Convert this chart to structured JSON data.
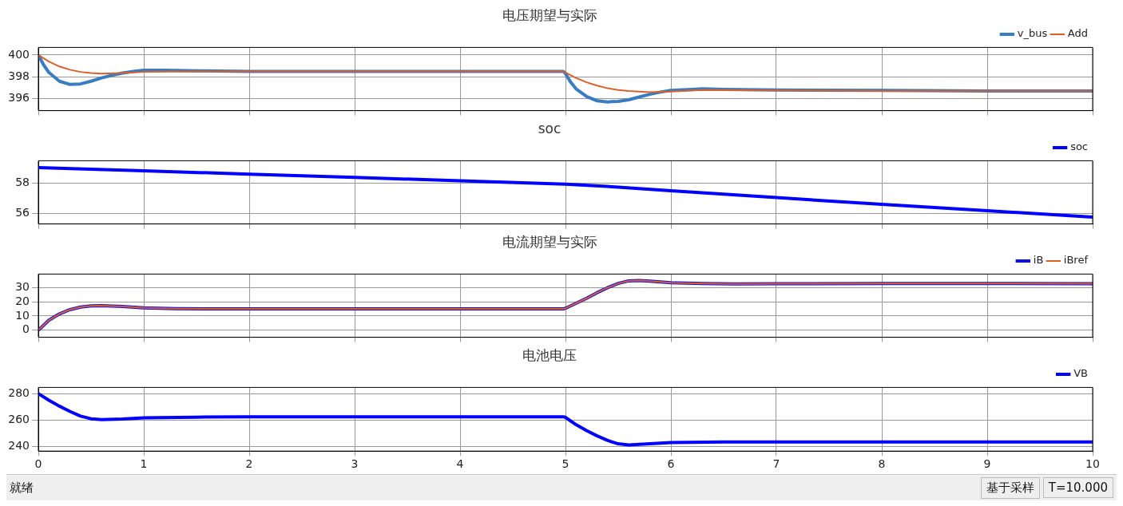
{
  "chart_data": [
    {
      "type": "line",
      "title": "电压期望与实际",
      "xlim": [
        0,
        10
      ],
      "xticks": [
        0,
        1,
        2,
        3,
        4,
        5,
        6,
        7,
        8,
        9,
        10
      ],
      "ylim": [
        394.9,
        400.7
      ],
      "yticks": [
        396,
        398,
        400
      ],
      "grid": true,
      "legend": "top right",
      "tick_labels": "y",
      "series": [
        {
          "name": "v_bus",
          "color": "#3a7cc2",
          "x": [
            0,
            0.05,
            0.1,
            0.2,
            0.3,
            0.4,
            0.5,
            0.6,
            0.7,
            0.8,
            0.9,
            1,
            1.2,
            1.5,
            2,
            3,
            4,
            4.98,
            5,
            5.05,
            5.1,
            5.2,
            5.3,
            5.4,
            5.5,
            5.6,
            5.7,
            5.8,
            5.9,
            6,
            6.2,
            6.3,
            6.5,
            7,
            8,
            9,
            10
          ],
          "values": [
            400,
            399.1,
            398.4,
            397.6,
            397.3,
            397.35,
            397.6,
            397.9,
            398.15,
            398.35,
            398.5,
            398.6,
            398.6,
            398.55,
            398.5,
            398.5,
            398.5,
            398.5,
            398.3,
            397.5,
            396.9,
            396.2,
            395.8,
            395.7,
            395.75,
            395.9,
            396.15,
            396.4,
            396.6,
            396.75,
            396.85,
            396.9,
            396.85,
            396.8,
            396.75,
            396.7,
            396.7
          ]
        },
        {
          "name": "Add",
          "color": "#d95f2b",
          "x": [
            0,
            0.1,
            0.2,
            0.3,
            0.4,
            0.5,
            0.6,
            0.8,
            1,
            1.5,
            2,
            3,
            4,
            4.98,
            5,
            5.1,
            5.2,
            5.3,
            5.4,
            5.5,
            5.6,
            5.8,
            6,
            6.3,
            7,
            8,
            9,
            10
          ],
          "values": [
            400,
            399.4,
            398.95,
            398.65,
            398.45,
            398.35,
            398.3,
            398.35,
            398.45,
            398.5,
            398.5,
            398.5,
            398.5,
            398.5,
            398.4,
            397.9,
            397.5,
            397.2,
            396.95,
            396.8,
            396.7,
            396.6,
            396.65,
            396.8,
            396.75,
            396.7,
            396.7,
            396.7
          ]
        }
      ]
    },
    {
      "type": "line",
      "title": "soc",
      "xlim": [
        0,
        10
      ],
      "xticks": [
        0,
        1,
        2,
        3,
        4,
        5,
        6,
        7,
        8,
        9,
        10
      ],
      "ylim": [
        55.3,
        59.5
      ],
      "yticks": [
        56,
        58
      ],
      "grid": true,
      "legend": "top right",
      "tick_labels": "y",
      "series": [
        {
          "name": "soc",
          "color": "#0000ff",
          "x": [
            0,
            1,
            2,
            3,
            4,
            5,
            5.5,
            6,
            7,
            8,
            9,
            10
          ],
          "values": [
            59.05,
            58.83,
            58.61,
            58.39,
            58.17,
            57.95,
            57.75,
            57.5,
            57.05,
            56.6,
            56.18,
            55.75
          ]
        }
      ]
    },
    {
      "type": "line",
      "title": "电流期望与实际",
      "xlim": [
        0,
        10
      ],
      "xticks": [
        0,
        1,
        2,
        3,
        4,
        5,
        6,
        7,
        8,
        9,
        10
      ],
      "ylim": [
        -5,
        39.6
      ],
      "yticks": [
        0,
        10,
        20,
        30
      ],
      "grid": true,
      "legend": "top right",
      "tick_labels": "y",
      "series": [
        {
          "name": "iB",
          "color": "#1010ee",
          "x": [
            0,
            0.1,
            0.2,
            0.3,
            0.4,
            0.5,
            0.6,
            0.8,
            1,
            1.3,
            1.6,
            2,
            3,
            4,
            4.98,
            5,
            5.1,
            5.2,
            5.3,
            5.4,
            5.5,
            5.6,
            5.7,
            5.8,
            6,
            6.3,
            6.6,
            7,
            8,
            9,
            10
          ],
          "values": [
            0,
            7,
            11.5,
            14.5,
            16.3,
            17.1,
            17.3,
            16.8,
            15.8,
            15.2,
            15,
            15,
            15,
            15,
            15,
            15.5,
            19,
            22.5,
            26.5,
            30,
            33,
            34.8,
            35,
            34.6,
            33.5,
            32.9,
            32.7,
            32.8,
            32.9,
            32.9,
            32.8
          ]
        },
        {
          "name": "iBref",
          "color": "#d95f2b",
          "x": [
            0,
            0.1,
            0.2,
            0.3,
            0.4,
            0.5,
            0.6,
            0.8,
            1,
            1.3,
            1.6,
            2,
            3,
            4,
            4.98,
            5,
            5.1,
            5.2,
            5.3,
            5.4,
            5.5,
            5.6,
            5.7,
            5.8,
            6,
            6.3,
            6.6,
            7,
            8,
            9,
            10
          ],
          "values": [
            0,
            7,
            11.5,
            14.5,
            16.3,
            17.1,
            17.3,
            16.8,
            15.8,
            15.2,
            15,
            15,
            15,
            15,
            15,
            15.5,
            19,
            22.5,
            26.5,
            30,
            33,
            34.8,
            35,
            34.6,
            33.5,
            32.9,
            32.7,
            32.8,
            32.9,
            32.9,
            32.8
          ]
        }
      ]
    },
    {
      "type": "line",
      "title": "电池电压",
      "xlim": [
        0,
        10
      ],
      "xticks": [
        0,
        1,
        2,
        3,
        4,
        5,
        6,
        7,
        8,
        9,
        10
      ],
      "ylim": [
        236.5,
        284.7
      ],
      "yticks": [
        240,
        260,
        280
      ],
      "grid": true,
      "legend": "top right",
      "annotations": [
        "就绪",
        "基于采样",
        "T=10.000"
      ],
      "series": [
        {
          "name": "VB",
          "color": "#0000ff",
          "x": [
            0,
            0.1,
            0.2,
            0.3,
            0.4,
            0.5,
            0.6,
            0.8,
            1,
            1.5,
            2,
            3,
            4,
            4.98,
            5,
            5.1,
            5.2,
            5.3,
            5.4,
            5.5,
            5.6,
            5.8,
            6,
            6.5,
            7,
            8,
            9,
            10
          ],
          "values": [
            280,
            275,
            270.5,
            266.5,
            263,
            261,
            260.3,
            260.8,
            261.7,
            262.2,
            262.4,
            262.5,
            262.5,
            262.5,
            262,
            256.5,
            252,
            248,
            244.5,
            242,
            241.2,
            242,
            243,
            243.4,
            243.4,
            243.4,
            243.4,
            243.4
          ]
        }
      ]
    }
  ]
}
